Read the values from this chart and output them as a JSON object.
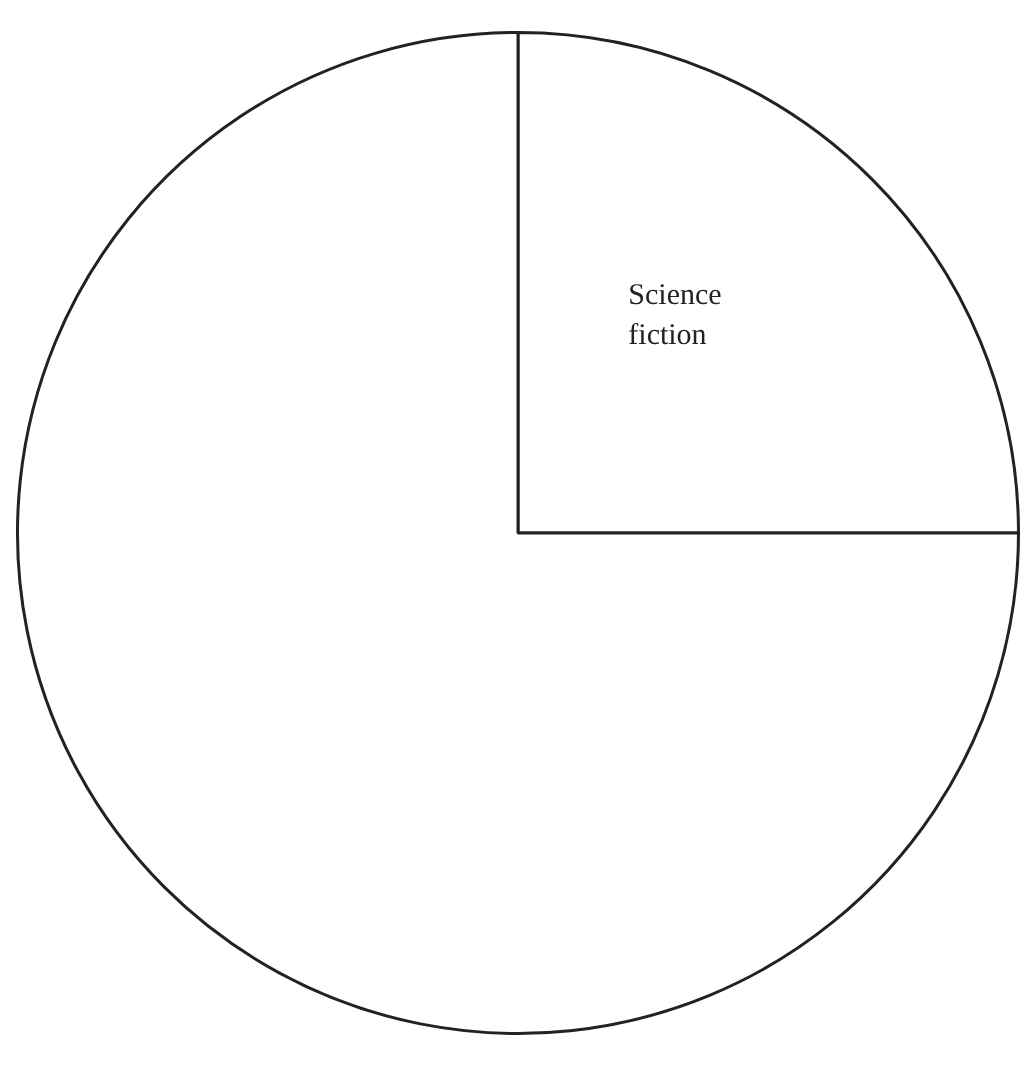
{
  "chart_data": {
    "type": "pie",
    "categories": [
      "Science fiction",
      null
    ],
    "values": [
      25,
      75
    ],
    "colors": [
      "#ffffff",
      "#ffffff"
    ],
    "legend": false
  }
}
